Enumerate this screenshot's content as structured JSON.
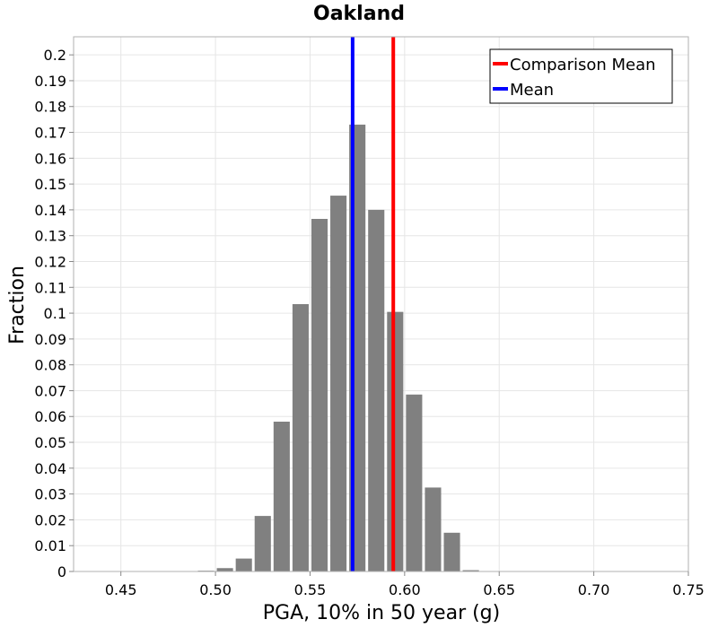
{
  "chart_data": {
    "type": "bar",
    "title": "Oakland",
    "xlabel": "PGA, 10% in 50 year (g)",
    "ylabel": "Fraction",
    "xlim": [
      0.425,
      0.75
    ],
    "ylim": [
      0,
      0.207
    ],
    "xticks": [
      "0.45",
      "0.50",
      "0.55",
      "0.60",
      "0.65",
      "0.70",
      "0.75"
    ],
    "yticks": [
      "0",
      "0.01",
      "0.02",
      "0.03",
      "0.04",
      "0.05",
      "0.06",
      "0.07",
      "0.08",
      "0.09",
      "0.1",
      "0.11",
      "0.12",
      "0.13",
      "0.14",
      "0.15",
      "0.16",
      "0.17",
      "0.18",
      "0.19",
      "0.2"
    ],
    "grid": true,
    "bin_width": 0.01,
    "bins": [
      {
        "x": 0.495,
        "value": 0.0003
      },
      {
        "x": 0.505,
        "value": 0.0013
      },
      {
        "x": 0.515,
        "value": 0.005
      },
      {
        "x": 0.525,
        "value": 0.0215
      },
      {
        "x": 0.535,
        "value": 0.058
      },
      {
        "x": 0.545,
        "value": 0.1035
      },
      {
        "x": 0.555,
        "value": 0.1365
      },
      {
        "x": 0.565,
        "value": 0.1455
      },
      {
        "x": 0.575,
        "value": 0.173
      },
      {
        "x": 0.585,
        "value": 0.14
      },
      {
        "x": 0.595,
        "value": 0.1005
      },
      {
        "x": 0.605,
        "value": 0.0685
      },
      {
        "x": 0.615,
        "value": 0.0325
      },
      {
        "x": 0.625,
        "value": 0.015
      },
      {
        "x": 0.635,
        "value": 0.0005
      }
    ],
    "bar_color": "#808080",
    "lines": [
      {
        "name": "Comparison Mean",
        "x": 0.594,
        "color": "#ff0000"
      },
      {
        "name": "Mean",
        "x": 0.5725,
        "color": "#0000ff"
      }
    ],
    "legend_position": "top-right"
  }
}
